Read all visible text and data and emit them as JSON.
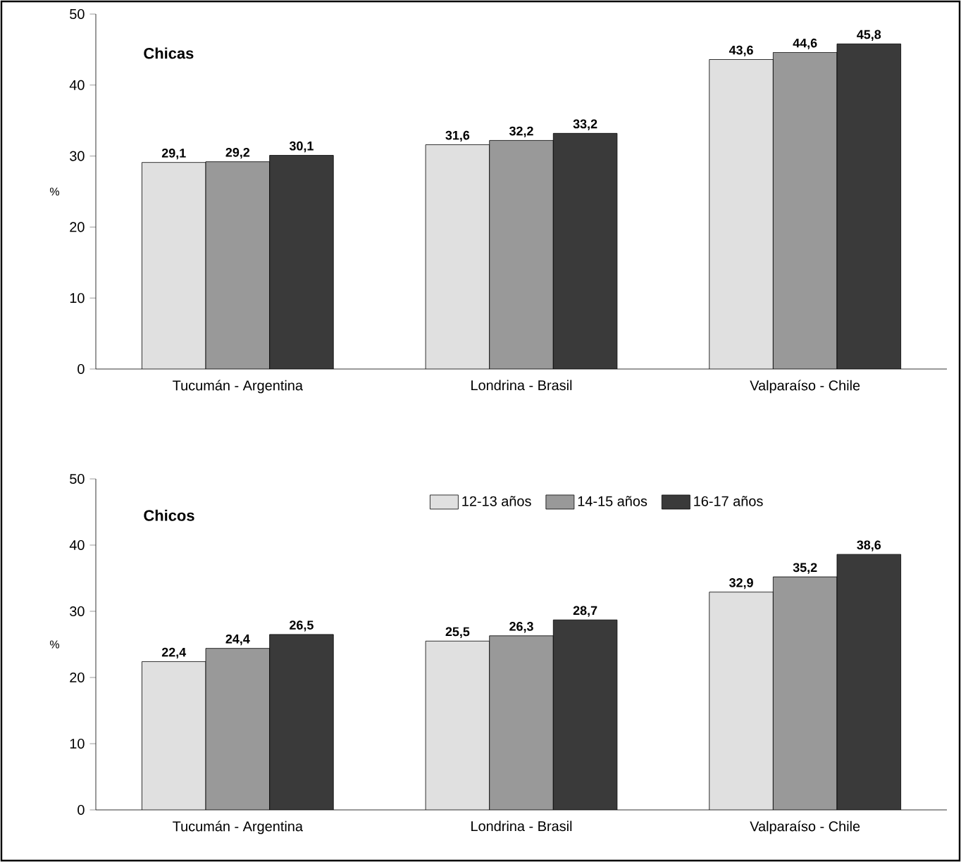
{
  "chart_data": [
    {
      "type": "bar",
      "title": "Chicas",
      "ylabel": "%",
      "categories": [
        "Tucumán - Argentina",
        "Londrina - Brasil",
        "Valparaíso - Chile"
      ],
      "ylim": [
        0,
        50
      ],
      "yticks": [
        0,
        10,
        20,
        30,
        40,
        50
      ],
      "legend": false,
      "series": [
        {
          "color": "#e0e0e0",
          "values": [
            29.1,
            31.6,
            43.6
          ],
          "value_labels": [
            "29,1",
            "31,6",
            "43,6"
          ]
        },
        {
          "color": "#999999",
          "values": [
            29.2,
            32.2,
            44.6
          ],
          "value_labels": [
            "29,2",
            "32,2",
            "44,6"
          ]
        },
        {
          "color": "#3a3a3a",
          "values": [
            30.1,
            33.2,
            45.8
          ],
          "value_labels": [
            "30,1",
            "33,2",
            "45,8"
          ]
        }
      ]
    },
    {
      "type": "bar",
      "title": "Chicos",
      "ylabel": "%",
      "categories": [
        "Tucumán - Argentina",
        "Londrina - Brasil",
        "Valparaíso - Chile"
      ],
      "ylim": [
        0,
        50
      ],
      "yticks": [
        0,
        10,
        20,
        30,
        40,
        50
      ],
      "legend": "top",
      "series": [
        {
          "name": "12-13 años",
          "color": "#e0e0e0",
          "values": [
            22.4,
            25.5,
            32.9
          ],
          "value_labels": [
            "22,4",
            "25,5",
            "32,9"
          ]
        },
        {
          "name": "14-15 años",
          "color": "#999999",
          "values": [
            24.4,
            26.3,
            35.2
          ],
          "value_labels": [
            "24,4",
            "26,3",
            "35,2"
          ]
        },
        {
          "name": "16-17 años",
          "color": "#3a3a3a",
          "values": [
            26.5,
            28.7,
            38.6
          ],
          "value_labels": [
            "26,5",
            "28,7",
            "38,6"
          ]
        }
      ]
    }
  ]
}
